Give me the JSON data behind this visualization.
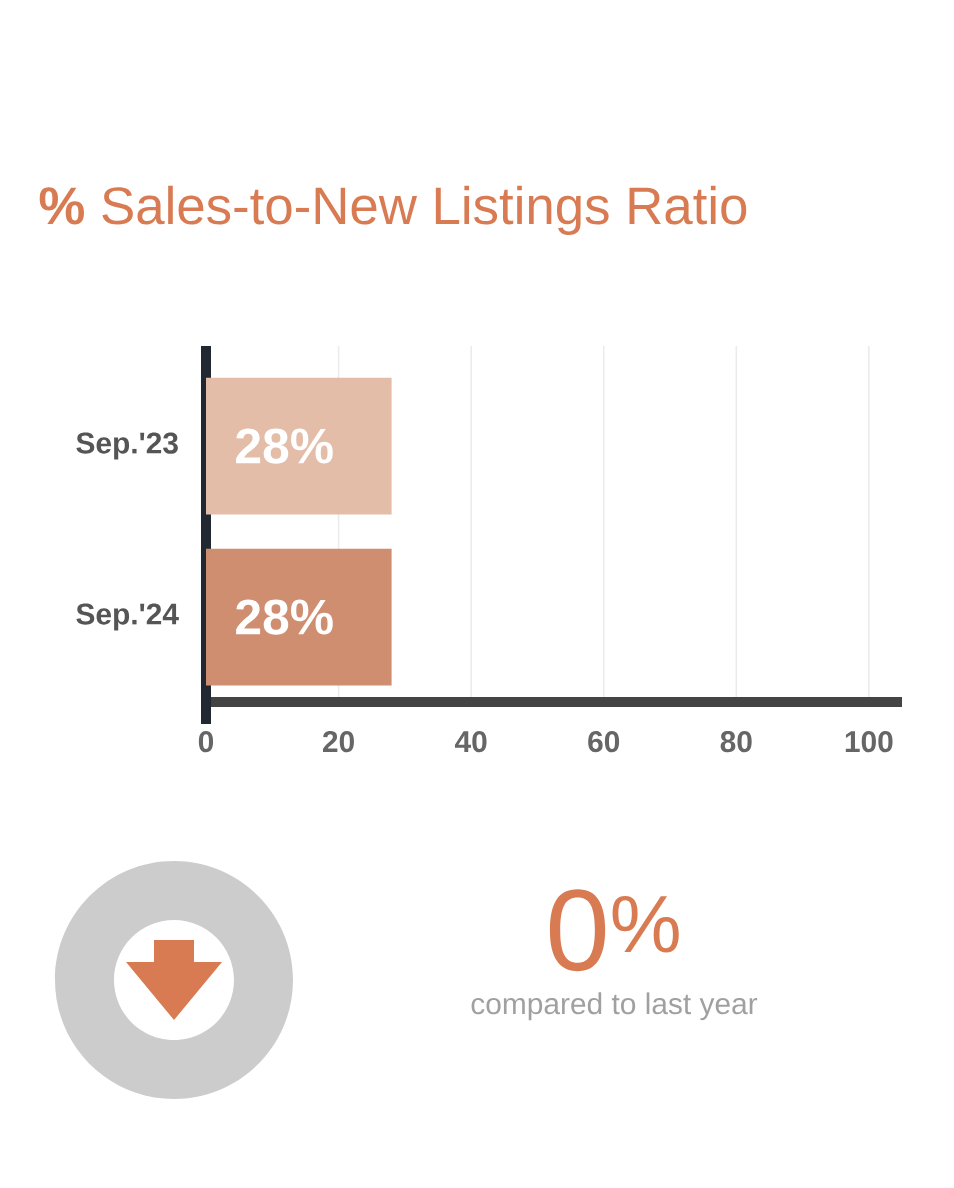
{
  "chart_data": {
    "type": "bar",
    "orientation": "horizontal",
    "title": "**%** Sales-to-New Listings Ratio",
    "categories": [
      "Sep.'23",
      "Sep.'24"
    ],
    "values": [
      28,
      28
    ],
    "colors": [
      "#e3bda8",
      "#cf8e70"
    ],
    "value_labels": [
      "28%",
      "28%"
    ],
    "xlim": [
      0,
      105
    ],
    "xticks": [
      0,
      20,
      40,
      60,
      80,
      100
    ],
    "grid": "x",
    "annotations": [
      "0$^{%}$",
      "compared to last year"
    ]
  }
}
